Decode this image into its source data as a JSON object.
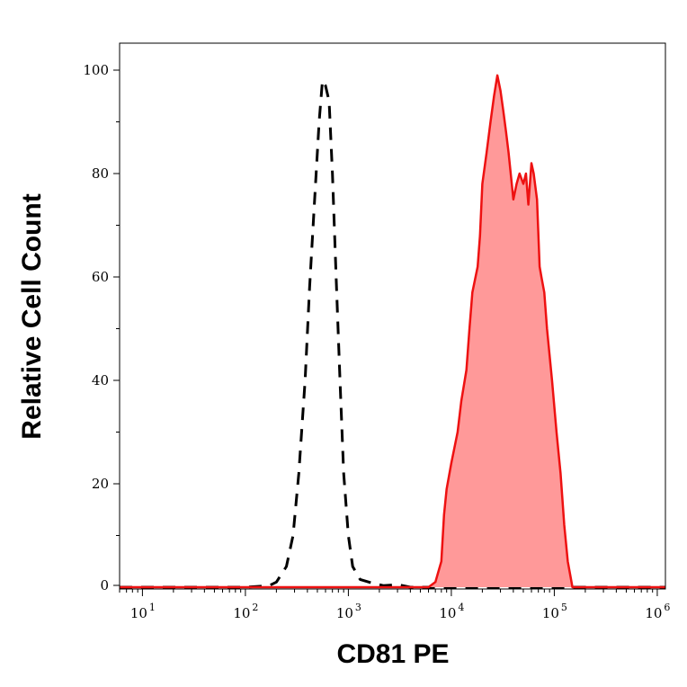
{
  "chart_data": {
    "type": "area",
    "xlabel": "CD81 PE",
    "ylabel": "Relative Cell Count",
    "x_scale": "log",
    "xlim": [
      6,
      1200000
    ],
    "ylim": [
      0,
      100
    ],
    "x_ticks": [
      {
        "base": "10",
        "exp": "1",
        "value": 10
      },
      {
        "base": "10",
        "exp": "2",
        "value": 100
      },
      {
        "base": "10",
        "exp": "3",
        "value": 1000
      },
      {
        "base": "10",
        "exp": "4",
        "value": 10000
      },
      {
        "base": "10",
        "exp": "5",
        "value": 100000
      },
      {
        "base": "10",
        "exp": "6",
        "value": 1000000
      }
    ],
    "y_ticks": [
      "0",
      "20",
      "40",
      "60",
      "80",
      "100"
    ],
    "grid": false,
    "series": [
      {
        "style": "dashed",
        "color": "#000000",
        "fill": false,
        "points": [
          [
            6,
            0
          ],
          [
            100,
            0
          ],
          [
            170,
            0.3
          ],
          [
            200,
            1
          ],
          [
            250,
            4
          ],
          [
            290,
            10
          ],
          [
            330,
            22
          ],
          [
            380,
            40
          ],
          [
            420,
            58
          ],
          [
            470,
            75
          ],
          [
            520,
            90
          ],
          [
            560,
            98
          ],
          [
            600,
            97
          ],
          [
            650,
            94
          ],
          [
            700,
            80
          ],
          [
            760,
            60
          ],
          [
            830,
            40
          ],
          [
            900,
            22
          ],
          [
            1000,
            10
          ],
          [
            1100,
            4
          ],
          [
            1300,
            1.5
          ],
          [
            1700,
            0.8
          ],
          [
            2200,
            0.3
          ],
          [
            3000,
            0.5
          ],
          [
            4000,
            0
          ],
          [
            1200000,
            0
          ]
        ]
      },
      {
        "style": "solid",
        "color": "#ee1111",
        "fill": true,
        "fill_color": "#ff9999",
        "points": [
          [
            6,
            0
          ],
          [
            6000,
            0
          ],
          [
            7000,
            1
          ],
          [
            8000,
            5
          ],
          [
            8500,
            14
          ],
          [
            9000,
            19
          ],
          [
            10000,
            24
          ],
          [
            11500,
            30
          ],
          [
            12500,
            36
          ],
          [
            14000,
            42
          ],
          [
            15000,
            50
          ],
          [
            16000,
            57
          ],
          [
            18000,
            62
          ],
          [
            19000,
            68
          ],
          [
            20000,
            78
          ],
          [
            22000,
            84
          ],
          [
            24000,
            90
          ],
          [
            26000,
            95
          ],
          [
            28000,
            99
          ],
          [
            30000,
            96
          ],
          [
            32000,
            92
          ],
          [
            34000,
            88
          ],
          [
            36000,
            84
          ],
          [
            40000,
            75
          ],
          [
            43000,
            78
          ],
          [
            46000,
            80
          ],
          [
            50000,
            78
          ],
          [
            53000,
            80
          ],
          [
            56000,
            74
          ],
          [
            60000,
            82
          ],
          [
            63000,
            80
          ],
          [
            68000,
            75
          ],
          [
            72000,
            62
          ],
          [
            75000,
            60
          ],
          [
            80000,
            57
          ],
          [
            85000,
            50
          ],
          [
            95000,
            40
          ],
          [
            105000,
            30
          ],
          [
            115000,
            22
          ],
          [
            125000,
            12
          ],
          [
            135000,
            5
          ],
          [
            150000,
            0
          ],
          [
            1200000,
            0
          ]
        ]
      }
    ]
  }
}
